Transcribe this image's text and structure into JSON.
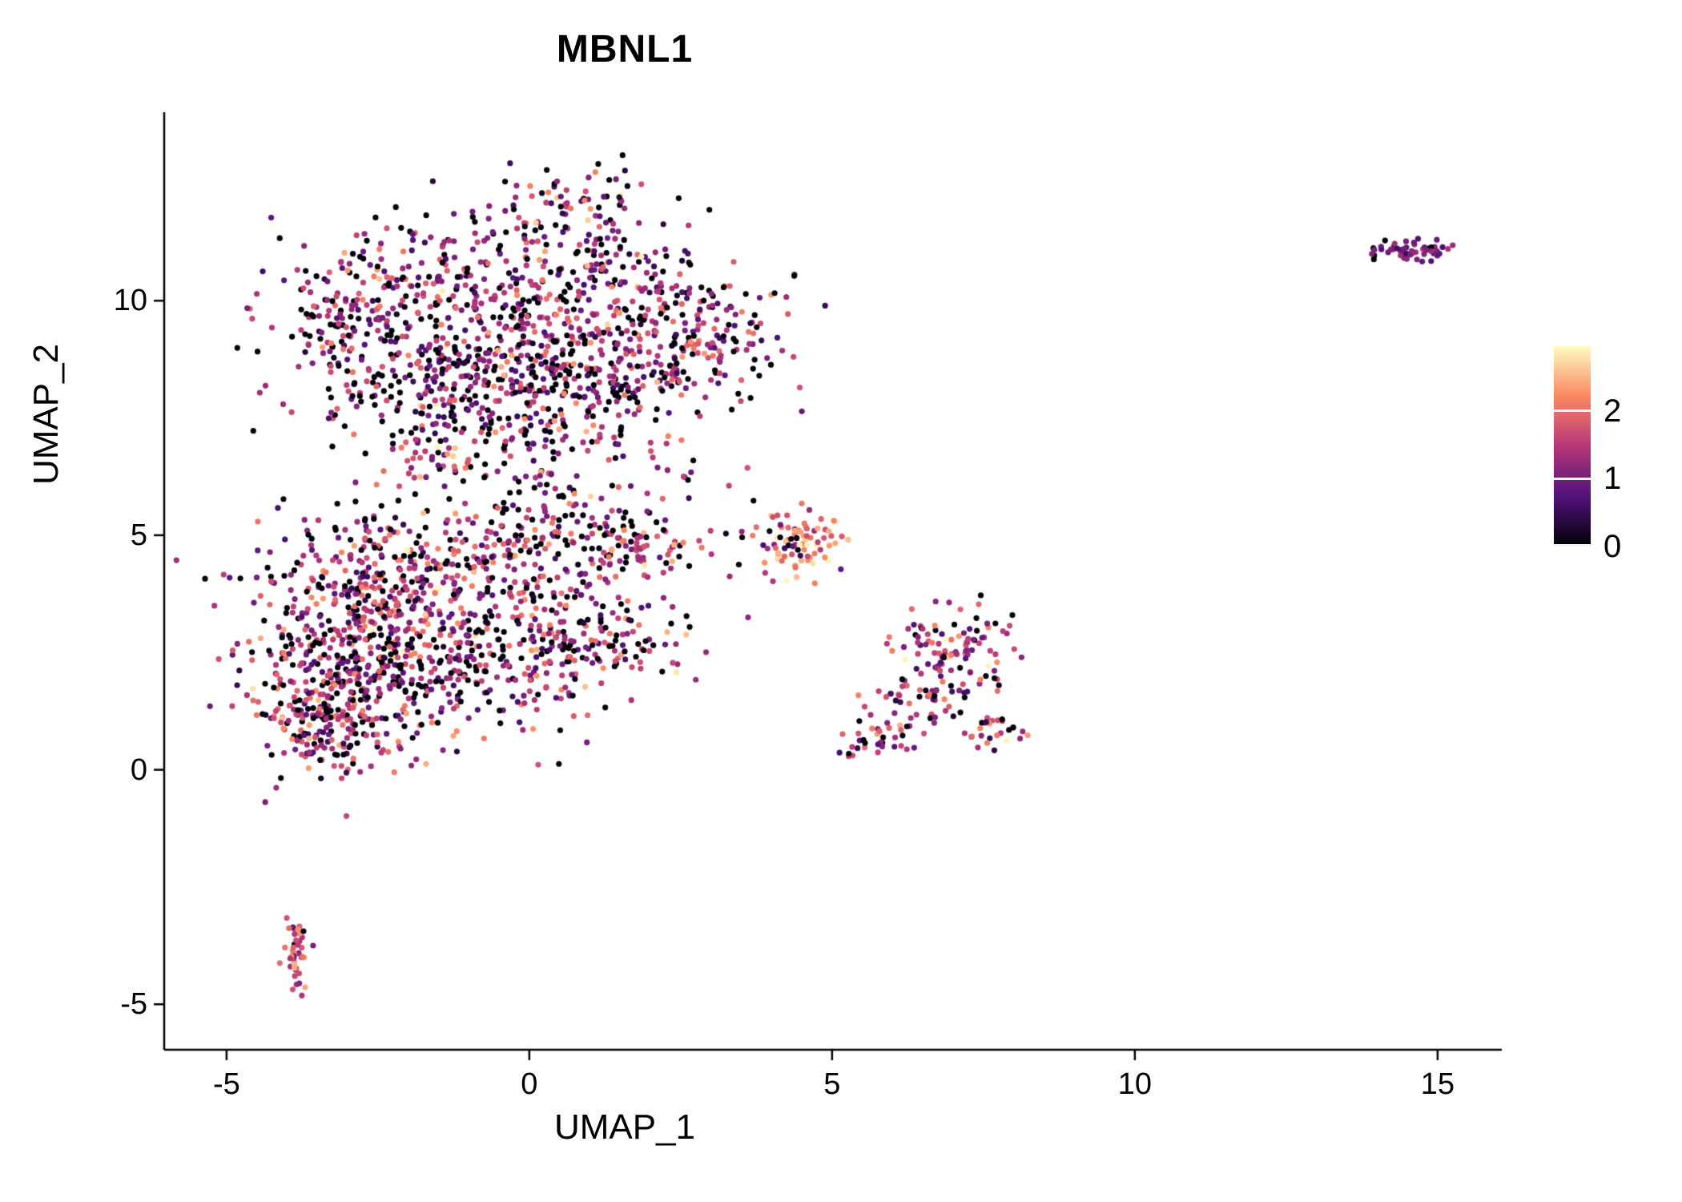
{
  "chart_data": {
    "type": "scatter",
    "title": "MBNL1",
    "xlabel": "UMAP_1",
    "ylabel": "UMAP_2",
    "xlim": [
      -6.03,
      16.06
    ],
    "ylim": [
      -5.97,
      14.02
    ],
    "x_ticks": [
      -5,
      0,
      5,
      10,
      15
    ],
    "y_ticks": [
      -5,
      0,
      5,
      10
    ],
    "grid": false,
    "background": "#ffffff",
    "axis_color": "#000000",
    "point_radius_px": 3.6,
    "legend": {
      "position": "right",
      "ticks": [
        0,
        1,
        2
      ],
      "domain": [
        0,
        2.95
      ],
      "colormap_name": "magma",
      "colormap": [
        {
          "t": 0.0,
          "color": "#000004"
        },
        {
          "t": 0.25,
          "color": "#50127b"
        },
        {
          "t": 0.5,
          "color": "#b63679"
        },
        {
          "t": 0.75,
          "color": "#fb8761"
        },
        {
          "t": 1.0,
          "color": "#fcfdbf"
        }
      ]
    },
    "clusters": [
      {
        "name": "upper-blob-core",
        "cx": -0.6,
        "cy": 10.2,
        "sx": 1.5,
        "sy": 0.95,
        "n": 330,
        "p0": 0.27,
        "mean": 1.25,
        "sd": 0.6
      },
      {
        "name": "upper-blob-right",
        "cx": 1.1,
        "cy": 9.4,
        "sx": 1.15,
        "sy": 1.15,
        "n": 280,
        "p0": 0.27,
        "mean": 1.25,
        "sd": 0.6
      },
      {
        "name": "upper-blob-lowerleft",
        "cx": -1.6,
        "cy": 8.4,
        "sx": 1.1,
        "sy": 0.85,
        "n": 220,
        "p0": 0.3,
        "mean": 1.2,
        "sd": 0.6
      },
      {
        "name": "upper-blob-lowermid",
        "cx": 0.3,
        "cy": 8.1,
        "sx": 1.0,
        "sy": 0.75,
        "n": 180,
        "p0": 0.3,
        "mean": 1.2,
        "sd": 0.6
      },
      {
        "name": "upper-blob-east",
        "cx": 2.9,
        "cy": 9.1,
        "sx": 0.75,
        "sy": 0.75,
        "n": 140,
        "p0": 0.25,
        "mean": 1.25,
        "sd": 0.6
      },
      {
        "name": "upper-blob-west",
        "cx": -2.9,
        "cy": 9.7,
        "sx": 0.65,
        "sy": 0.75,
        "n": 110,
        "p0": 0.25,
        "mean": 1.3,
        "sd": 0.6
      },
      {
        "name": "upper-blob-tip",
        "cx": 0.9,
        "cy": 11.9,
        "sx": 0.65,
        "sy": 0.45,
        "n": 70,
        "p0": 0.25,
        "mean": 1.3,
        "sd": 0.6
      },
      {
        "name": "bridge",
        "cx": -0.4,
        "cy": 6.7,
        "sx": 1.1,
        "sy": 0.55,
        "n": 80,
        "p0": 0.3,
        "mean": 1.2,
        "sd": 0.6
      },
      {
        "name": "lower-blob-core",
        "cx": -2.6,
        "cy": 3.4,
        "sx": 1.0,
        "sy": 1.0,
        "n": 380,
        "p0": 0.25,
        "mean": 1.35,
        "sd": 0.6
      },
      {
        "name": "lower-blob-top",
        "cx": -1.1,
        "cy": 4.4,
        "sx": 1.2,
        "sy": 0.7,
        "n": 230,
        "p0": 0.25,
        "mean": 1.35,
        "sd": 0.6
      },
      {
        "name": "lower-blob-southwest",
        "cx": -3.0,
        "cy": 1.6,
        "sx": 0.75,
        "sy": 0.8,
        "n": 240,
        "p0": 0.25,
        "mean": 1.35,
        "sd": 0.6
      },
      {
        "name": "lower-blob-east",
        "cx": -0.6,
        "cy": 2.3,
        "sx": 1.1,
        "sy": 0.85,
        "n": 230,
        "p0": 0.25,
        "mean": 1.3,
        "sd": 0.6
      },
      {
        "name": "lower-blob-arm",
        "cx": 1.2,
        "cy": 2.7,
        "sx": 0.85,
        "sy": 0.6,
        "n": 130,
        "p0": 0.25,
        "mean": 1.3,
        "sd": 0.6
      },
      {
        "name": "lower-blob-streak",
        "cx": 1.7,
        "cy": 4.8,
        "sx": 0.6,
        "sy": 0.35,
        "n": 90,
        "p0": 0.2,
        "mean": 1.5,
        "sd": 0.55
      },
      {
        "name": "lower-blob-bottomleft",
        "cx": -3.6,
        "cy": 0.9,
        "sx": 0.45,
        "sy": 0.5,
        "n": 90,
        "p0": 0.2,
        "mean": 1.5,
        "sd": 0.55
      },
      {
        "name": "mid-sparse",
        "cx": 0.3,
        "cy": 5.3,
        "sx": 0.5,
        "sy": 0.3,
        "n": 45,
        "p0": 0.3,
        "mean": 1.2,
        "sd": 0.6
      },
      {
        "name": "mid-sparse-2",
        "cx": 2.3,
        "cy": 5.8,
        "sx": 0.7,
        "sy": 0.5,
        "n": 18,
        "p0": 0.3,
        "mean": 1.2,
        "sd": 0.6
      },
      {
        "name": "small-high-expression",
        "cx": 4.55,
        "cy": 4.9,
        "sx": 0.33,
        "sy": 0.42,
        "n": 70,
        "p0": 0.04,
        "mean": 2.15,
        "sd": 0.5
      },
      {
        "name": "small-high-expression-fringe",
        "cx": 3.95,
        "cy": 4.9,
        "sx": 0.28,
        "sy": 0.35,
        "n": 18,
        "p0": 0.15,
        "mean": 1.5,
        "sd": 0.6
      },
      {
        "name": "right-cluster-core",
        "cx": 7.1,
        "cy": 2.5,
        "sx": 0.55,
        "sy": 0.45,
        "n": 110,
        "p0": 0.15,
        "mean": 1.5,
        "sd": 0.6
      },
      {
        "name": "right-cluster-tail",
        "cx": 6.3,
        "cy": 1.4,
        "sx": 0.45,
        "sy": 0.35,
        "n": 45,
        "p0": 0.15,
        "mean": 1.5,
        "sd": 0.6
      },
      {
        "name": "right-cluster-tail-tip",
        "cx": 5.7,
        "cy": 0.6,
        "sx": 0.3,
        "sy": 0.18,
        "n": 28,
        "p0": 0.15,
        "mean": 1.5,
        "sd": 0.6
      },
      {
        "name": "right-cluster-foot",
        "cx": 7.7,
        "cy": 0.85,
        "sx": 0.3,
        "sy": 0.2,
        "n": 28,
        "p0": 0.15,
        "mean": 1.4,
        "sd": 0.6
      },
      {
        "name": "bottom-left-cluster",
        "cx": -3.88,
        "cy": -3.9,
        "sx": 0.12,
        "sy": 0.42,
        "n": 45,
        "p0": 0.08,
        "mean": 1.6,
        "sd": 0.5
      },
      {
        "name": "top-right-cluster",
        "cx": 14.6,
        "cy": 11.05,
        "sx": 0.33,
        "sy": 0.11,
        "n": 55,
        "p0": 0.03,
        "mean": 1.0,
        "sd": 0.25
      }
    ]
  }
}
